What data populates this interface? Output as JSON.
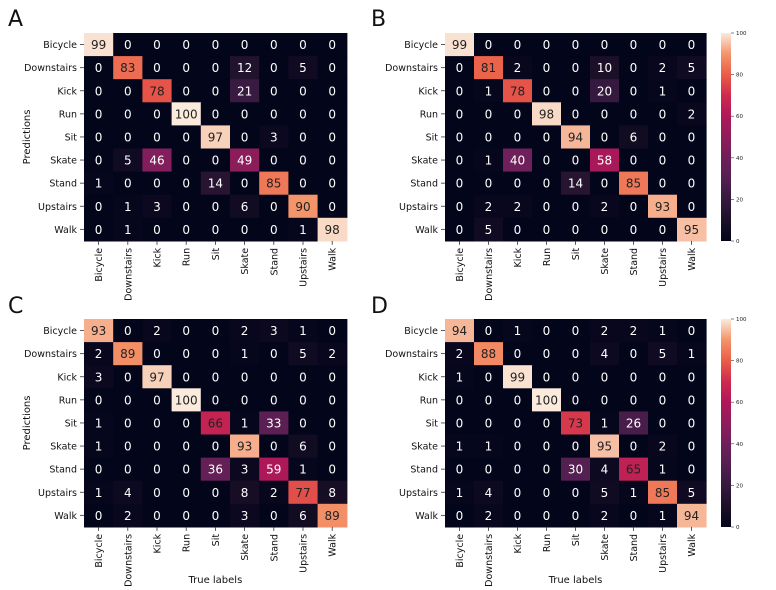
{
  "figure": {
    "axis_title_x": "True labels",
    "axis_title_y": "Predictions",
    "colorbar_ticks": [
      "0",
      "20",
      "40",
      "60",
      "80",
      "100"
    ]
  },
  "chart_data": [
    {
      "panel": "A",
      "type": "heatmap",
      "title": "A",
      "xlabel": "",
      "ylabel": "Predictions",
      "x_categories": [
        "Bicycle",
        "Downstairs",
        "Kick",
        "Run",
        "Sit",
        "Skate",
        "Stand",
        "Upstairs",
        "Walk"
      ],
      "y_categories": [
        "Bicycle",
        "Downstairs",
        "Kick",
        "Run",
        "Sit",
        "Skate",
        "Stand",
        "Upstairs",
        "Walk"
      ],
      "values": [
        [
          99,
          0,
          0,
          0,
          0,
          0,
          0,
          0,
          0
        ],
        [
          0,
          83,
          0,
          0,
          0,
          12,
          0,
          5,
          0
        ],
        [
          0,
          0,
          78,
          0,
          0,
          21,
          0,
          0,
          0
        ],
        [
          0,
          0,
          0,
          100,
          0,
          0,
          0,
          0,
          0
        ],
        [
          0,
          0,
          0,
          0,
          97,
          0,
          3,
          0,
          0
        ],
        [
          0,
          5,
          46,
          0,
          0,
          49,
          0,
          0,
          0
        ],
        [
          1,
          0,
          0,
          0,
          14,
          0,
          85,
          0,
          0
        ],
        [
          0,
          1,
          3,
          0,
          0,
          6,
          0,
          90,
          0
        ],
        [
          0,
          1,
          0,
          0,
          0,
          0,
          0,
          1,
          98
        ]
      ],
      "colorbar": false
    },
    {
      "panel": "B",
      "type": "heatmap",
      "title": "B",
      "xlabel": "",
      "ylabel": "",
      "x_categories": [
        "Bicycle",
        "Downstairs",
        "Kick",
        "Run",
        "Sit",
        "Skate",
        "Stand",
        "Upstairs",
        "Walk"
      ],
      "y_categories": [
        "Bicycle",
        "Downstairs",
        "Kick",
        "Run",
        "Sit",
        "Skate",
        "Stand",
        "Upstairs",
        "Walk"
      ],
      "values": [
        [
          99,
          0,
          0,
          0,
          0,
          0,
          0,
          0,
          0
        ],
        [
          0,
          81,
          2,
          0,
          0,
          10,
          0,
          2,
          5
        ],
        [
          0,
          1,
          78,
          0,
          0,
          20,
          0,
          1,
          0
        ],
        [
          0,
          0,
          0,
          98,
          0,
          0,
          0,
          0,
          2
        ],
        [
          0,
          0,
          0,
          0,
          94,
          0,
          6,
          0,
          0
        ],
        [
          0,
          1,
          40,
          0,
          0,
          58,
          0,
          0,
          0
        ],
        [
          0,
          0,
          0,
          0,
          14,
          0,
          85,
          0,
          0
        ],
        [
          0,
          2,
          2,
          0,
          0,
          2,
          0,
          93,
          0
        ],
        [
          0,
          5,
          0,
          0,
          0,
          0,
          0,
          0,
          95
        ]
      ],
      "colorbar": true,
      "colorbar_range": [
        0,
        100
      ]
    },
    {
      "panel": "C",
      "type": "heatmap",
      "title": "C",
      "xlabel": "True labels",
      "ylabel": "Predictions",
      "x_categories": [
        "Bicycle",
        "Downstairs",
        "Kick",
        "Run",
        "Sit",
        "Skate",
        "Stand",
        "Upstairs",
        "Walk"
      ],
      "y_categories": [
        "Bicycle",
        "Downstairs",
        "Kick",
        "Run",
        "Sit",
        "Skate",
        "Stand",
        "Upstairs",
        "Walk"
      ],
      "values": [
        [
          93,
          0,
          2,
          0,
          0,
          2,
          3,
          1,
          0
        ],
        [
          2,
          89,
          0,
          0,
          0,
          1,
          0,
          5,
          2
        ],
        [
          3,
          0,
          97,
          0,
          0,
          0,
          0,
          0,
          0
        ],
        [
          0,
          0,
          0,
          100,
          0,
          0,
          0,
          0,
          0
        ],
        [
          1,
          0,
          0,
          0,
          66,
          1,
          33,
          0,
          0
        ],
        [
          1,
          0,
          0,
          0,
          0,
          93,
          0,
          6,
          0
        ],
        [
          0,
          0,
          0,
          0,
          36,
          3,
          59,
          1,
          0
        ],
        [
          1,
          4,
          0,
          0,
          0,
          8,
          2,
          77,
          8
        ],
        [
          0,
          2,
          0,
          0,
          0,
          3,
          0,
          6,
          89
        ]
      ],
      "colorbar": false
    },
    {
      "panel": "D",
      "type": "heatmap",
      "title": "D",
      "xlabel": "True labels",
      "ylabel": "",
      "x_categories": [
        "Bicycle",
        "Downstairs",
        "Kick",
        "Run",
        "Sit",
        "Skate",
        "Stand",
        "Upstairs",
        "Walk"
      ],
      "y_categories": [
        "Bicycle",
        "Downstairs",
        "Kick",
        "Run",
        "Sit",
        "Skate",
        "Stand",
        "Upstairs",
        "Walk"
      ],
      "values": [
        [
          94,
          0,
          1,
          0,
          0,
          2,
          2,
          1,
          0
        ],
        [
          2,
          88,
          0,
          0,
          0,
          4,
          0,
          5,
          1
        ],
        [
          1,
          0,
          99,
          0,
          0,
          0,
          0,
          0,
          0
        ],
        [
          0,
          0,
          0,
          100,
          0,
          0,
          0,
          0,
          0
        ],
        [
          0,
          0,
          0,
          0,
          73,
          1,
          26,
          0,
          0
        ],
        [
          1,
          1,
          0,
          0,
          0,
          95,
          0,
          2,
          0
        ],
        [
          0,
          0,
          0,
          0,
          30,
          4,
          65,
          1,
          0
        ],
        [
          1,
          4,
          0,
          0,
          0,
          5,
          1,
          85,
          5
        ],
        [
          0,
          2,
          0,
          0,
          0,
          2,
          0,
          1,
          94
        ]
      ],
      "colorbar": true,
      "colorbar_range": [
        0,
        100
      ]
    }
  ]
}
